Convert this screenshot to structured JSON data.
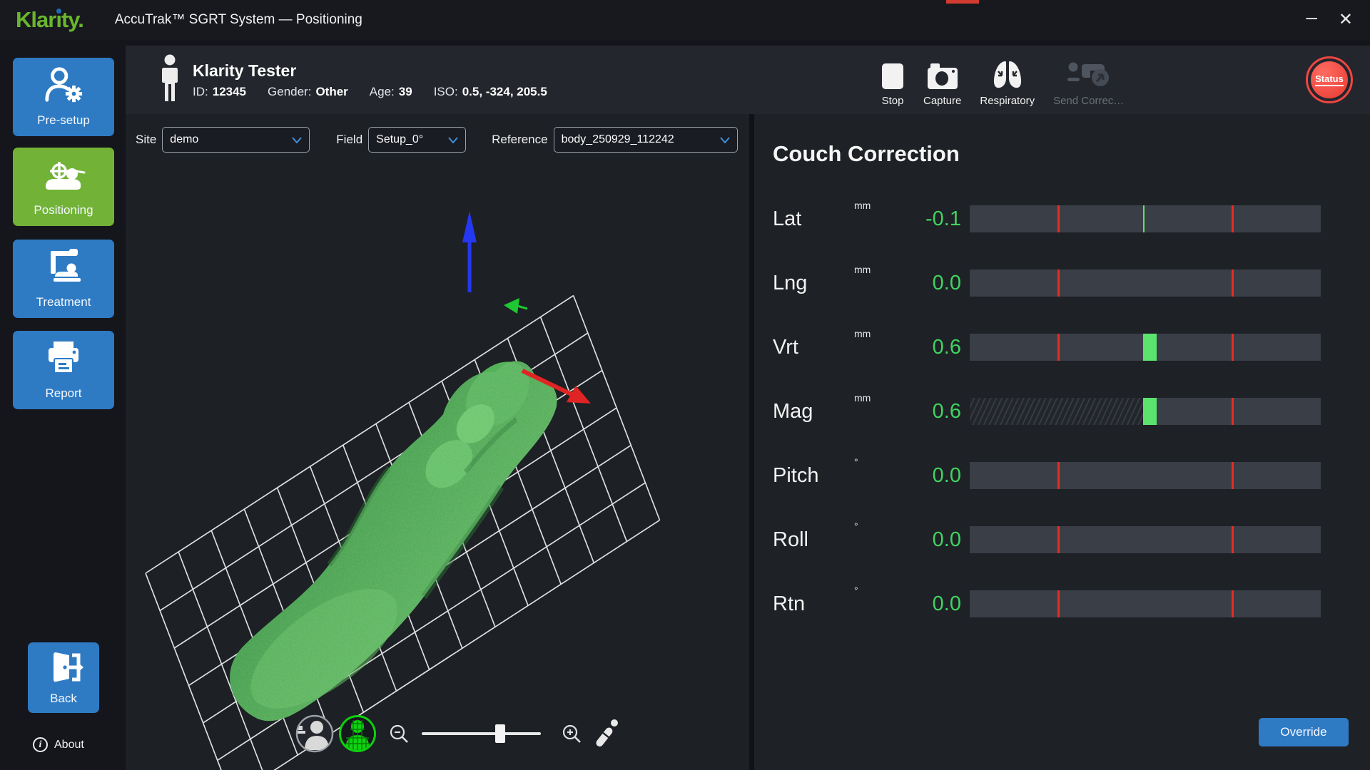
{
  "window": {
    "logo": {
      "text": "Klarity.",
      "pre": "Klar",
      "i_char": "ı",
      "post": "ty",
      "period": "."
    },
    "title": "AccuTrak™ SGRT System — Positioning",
    "controls": {
      "minimize": "–",
      "close": "✕"
    }
  },
  "sidebar": {
    "items": [
      {
        "label": "Pre-setup",
        "active": false
      },
      {
        "label": "Positioning",
        "active": true
      },
      {
        "label": "Treatment",
        "active": false
      },
      {
        "label": "Report",
        "active": false
      }
    ],
    "back_label": "Back",
    "about_label": "About"
  },
  "patient": {
    "name": "Klarity Tester",
    "id_label": "ID:",
    "id": "12345",
    "gender_label": "Gender:",
    "gender": "Other",
    "age_label": "Age:",
    "age": "39",
    "iso_label": "ISO:",
    "iso": "0.5, -324, 205.5"
  },
  "toolbar": {
    "buttons": [
      {
        "label": "Stop",
        "disabled": false
      },
      {
        "label": "Capture",
        "disabled": false
      },
      {
        "label": "Respiratory",
        "disabled": false
      },
      {
        "label": "Send Correc…",
        "disabled": true
      }
    ],
    "status_label": "Status"
  },
  "selectors": {
    "site": {
      "label": "Site",
      "value": "demo"
    },
    "field": {
      "label": "Field",
      "value": "Setup_0°"
    },
    "reference": {
      "label": "Reference",
      "value": "body_250929_112242"
    }
  },
  "viewport": {
    "zoom_slider_percent": 66
  },
  "couch_correction": {
    "title": "Couch Correction",
    "tick_positions": [
      25,
      74.5
    ],
    "rows": [
      {
        "label": "Lat",
        "unit": "mm",
        "value": "-0.1",
        "marker": "line",
        "marker_pos": 49.4
      },
      {
        "label": "Lng",
        "unit": "mm",
        "value": "0.0",
        "marker": "none"
      },
      {
        "label": "Vrt",
        "unit": "mm",
        "value": "0.6",
        "marker": "block",
        "block_start": 49.3,
        "block_end": 53.3
      },
      {
        "label": "Mag",
        "unit": "mm",
        "value": "0.6",
        "marker": "block",
        "block_start": 49.3,
        "block_end": 53.3,
        "hatched_left": true
      },
      {
        "label": "Pitch",
        "unit": "°",
        "value": "0.0",
        "marker": "none"
      },
      {
        "label": "Roll",
        "unit": "°",
        "value": "0.0",
        "marker": "none"
      },
      {
        "label": "Rtn",
        "unit": "°",
        "value": "0.0",
        "marker": "none"
      }
    ],
    "override_label": "Override"
  },
  "colors": {
    "accent-blue": "#2e7bc4",
    "accent-green": "#72b337",
    "value-green": "#41d35f",
    "marker-green": "#5be36e",
    "bar-red": "#e82c23",
    "status-red": "#ef4641",
    "logo-green": "#6ab52d",
    "logo-blue": "#1f6cb4"
  }
}
